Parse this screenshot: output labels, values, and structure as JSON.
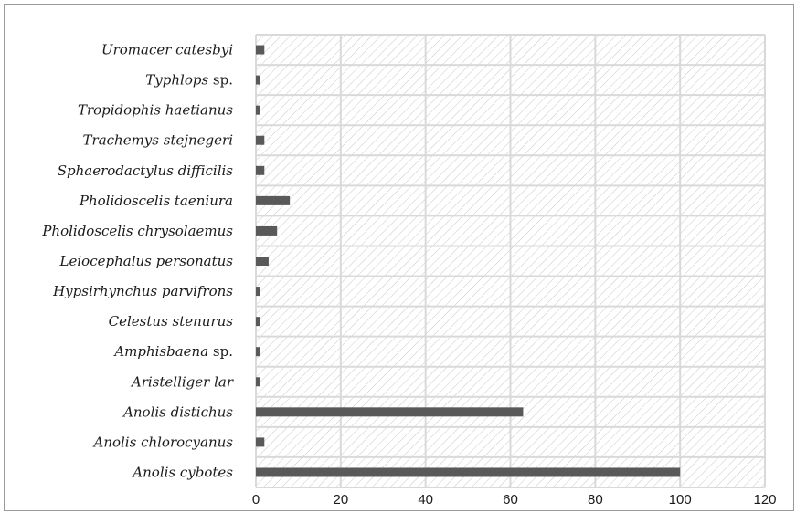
{
  "chart_data": {
    "type": "bar",
    "orientation": "horizontal",
    "categories": [
      {
        "name": "Uromacer catesbyi",
        "suffix": ""
      },
      {
        "name": "Typhlops",
        "suffix": " sp."
      },
      {
        "name": "Tropidophis haetianus",
        "suffix": ""
      },
      {
        "name": "Trachemys stejnegeri",
        "suffix": ""
      },
      {
        "name": "Sphaerodactylus difficilis",
        "suffix": ""
      },
      {
        "name": "Pholidoscelis taeniura",
        "suffix": ""
      },
      {
        "name": "Pholidoscelis chrysolaemus",
        "suffix": ""
      },
      {
        "name": "Leiocephalus personatus",
        "suffix": ""
      },
      {
        "name": "Hypsirhynchus parvifrons",
        "suffix": ""
      },
      {
        "name": "Celestus stenurus",
        "suffix": ""
      },
      {
        "name": "Amphisbaena",
        "suffix": " sp."
      },
      {
        "name": "Aristelliger lar",
        "suffix": ""
      },
      {
        "name": "Anolis distichus",
        "suffix": ""
      },
      {
        "name": "Anolis chlorocyanus",
        "suffix": ""
      },
      {
        "name": "Anolis cybotes",
        "suffix": ""
      }
    ],
    "values": [
      2,
      1,
      1,
      2,
      2,
      8,
      5,
      3,
      1,
      1,
      1,
      1,
      63,
      2,
      100
    ],
    "xlim": [
      0,
      120
    ],
    "xticks": [
      0,
      20,
      40,
      60,
      80,
      100,
      120
    ],
    "title": "",
    "xlabel": "",
    "ylabel": "",
    "grid": true,
    "legend": "none",
    "colors": {
      "bar": "#595959",
      "grid": "#d9d9d9",
      "hatch": "#c8c8c8",
      "frame": "#9a9a9a"
    }
  }
}
